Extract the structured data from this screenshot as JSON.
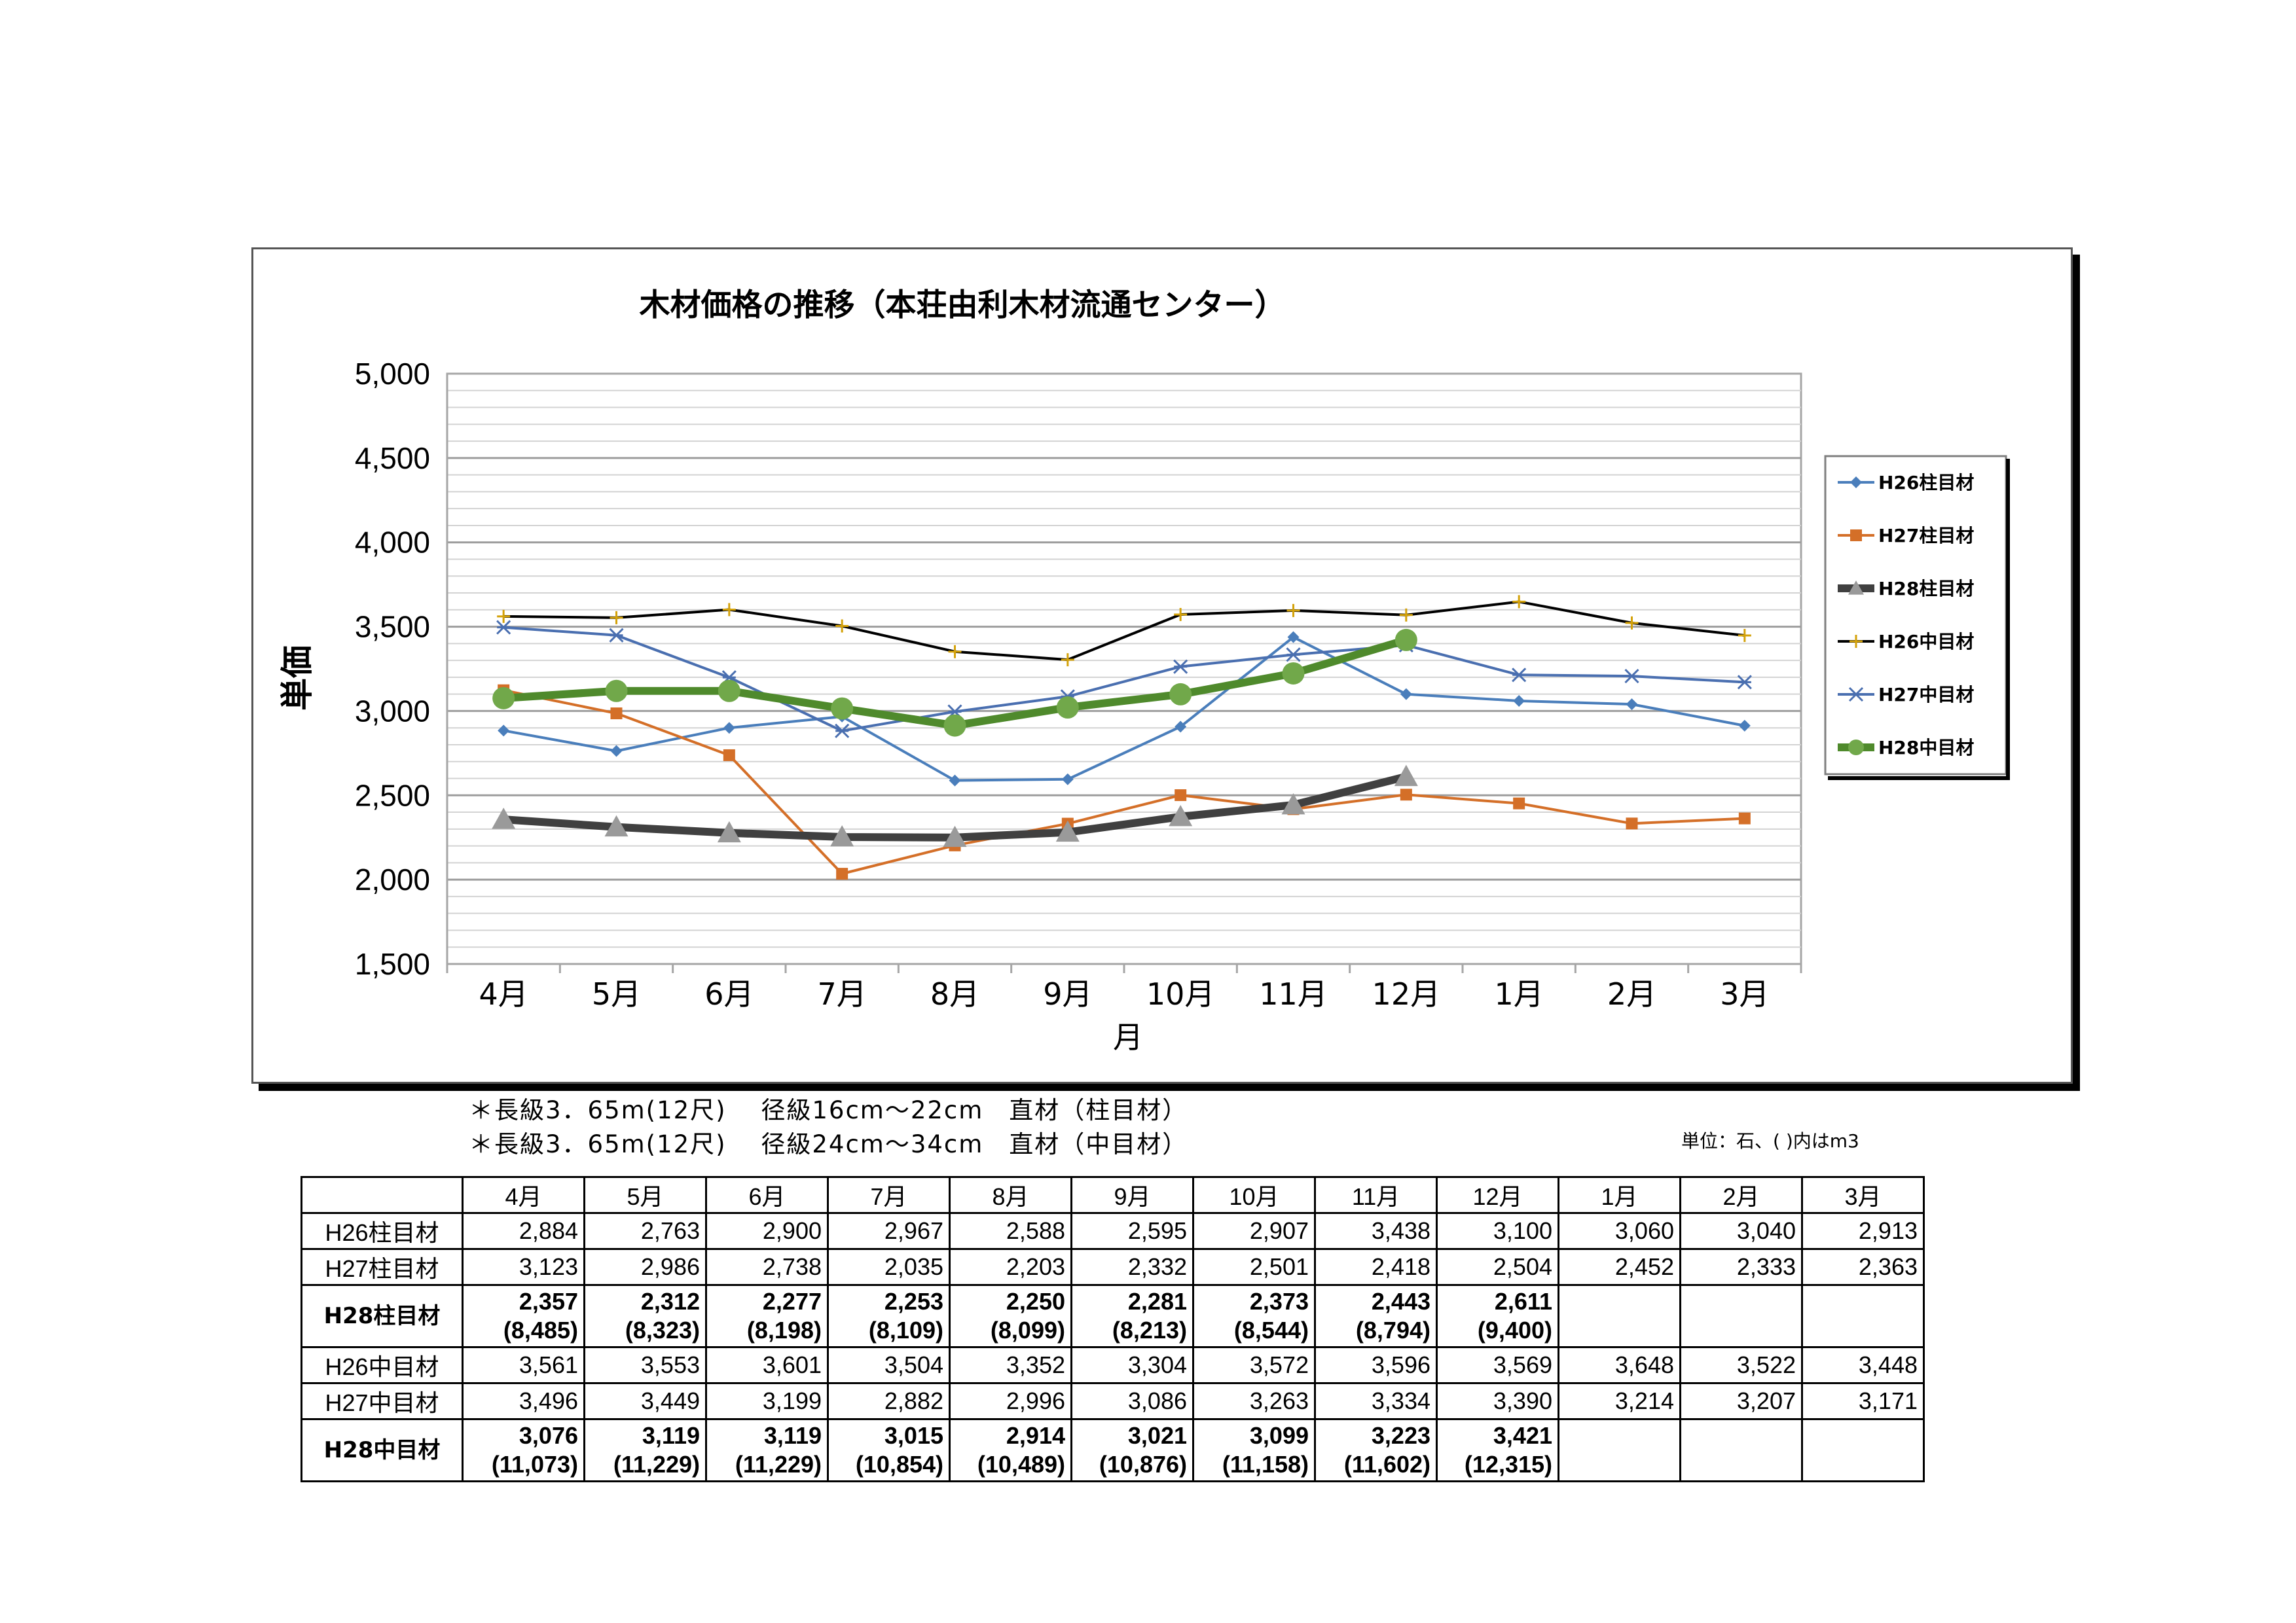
{
  "chart_data": {
    "type": "line",
    "title": "木材価格の推移（本荘由利木材流通センター）",
    "xlabel": "月",
    "ylabel": "単価",
    "ylim": [
      1500,
      5000
    ],
    "y_ticks": [
      "1,500",
      "2,000",
      "2,500",
      "3,000",
      "3,500",
      "4,000",
      "4,500",
      "5,000"
    ],
    "categories": [
      "4月",
      "5月",
      "6月",
      "7月",
      "8月",
      "9月",
      "10月",
      "11月",
      "12月",
      "1月",
      "2月",
      "3月"
    ],
    "grid": true,
    "legend_position": "right",
    "series": [
      {
        "name": "H26柱目材",
        "color": "#4a7ebb",
        "marker": "diamond",
        "values": [
          2884,
          2763,
          2900,
          2967,
          2588,
          2595,
          2907,
          3438,
          3100,
          3060,
          3040,
          2913
        ]
      },
      {
        "name": "H27柱目材",
        "color": "#d46f28",
        "marker": "square",
        "values": [
          3123,
          2986,
          2738,
          2035,
          2203,
          2332,
          2501,
          2418,
          2504,
          2452,
          2333,
          2363
        ]
      },
      {
        "name": "H28柱目材",
        "color": "#404040",
        "marker_color": "#9a9a9a",
        "marker": "triangle",
        "values": [
          2357,
          2312,
          2277,
          2253,
          2250,
          2281,
          2373,
          2443,
          2611,
          null,
          null,
          null
        ]
      },
      {
        "name": "H26中目材",
        "color": "#000000",
        "marker_color": "#d4a20a",
        "marker": "cross",
        "values": [
          3561,
          3553,
          3601,
          3504,
          3352,
          3304,
          3572,
          3596,
          3569,
          3648,
          3522,
          3448
        ]
      },
      {
        "name": "H27中目材",
        "color": "#4a6fb0",
        "marker": "star",
        "values": [
          3496,
          3449,
          3199,
          2882,
          2996,
          3086,
          3263,
          3334,
          3390,
          3214,
          3207,
          3171
        ]
      },
      {
        "name": "H28中目材",
        "color": "#4f8a2c",
        "marker_color": "#71a84a",
        "marker": "circle",
        "values": [
          3076,
          3119,
          3119,
          3015,
          2914,
          3021,
          3099,
          3223,
          3421,
          null,
          null,
          null
        ]
      }
    ]
  },
  "notes": [
    "＊長級3．65m(12尺)　 径級16cm～22cm　直材（柱目材）",
    "＊長級3．65m(12尺)　 径級24cm～34cm　直材（中目材）"
  ],
  "unit_note": "単位：石、( )内はm3",
  "table": {
    "months": [
      "4月",
      "5月",
      "6月",
      "7月",
      "8月",
      "9月",
      "10月",
      "11月",
      "12月",
      "1月",
      "2月",
      "3月"
    ],
    "rows": [
      {
        "label": "H26柱目材",
        "values": [
          "2,884",
          "2,763",
          "2,900",
          "2,967",
          "2,588",
          "2,595",
          "2,907",
          "3,438",
          "3,100",
          "3,060",
          "3,040",
          "2,913"
        ]
      },
      {
        "label": "H27柱目材",
        "values": [
          "3,123",
          "2,986",
          "2,738",
          "2,035",
          "2,203",
          "2,332",
          "2,501",
          "2,418",
          "2,504",
          "2,452",
          "2,333",
          "2,363"
        ]
      },
      {
        "label": "H28柱目材",
        "values": [
          "2,357",
          "2,312",
          "2,277",
          "2,253",
          "2,250",
          "2,281",
          "2,373",
          "2,443",
          "2,611",
          "",
          "",
          ""
        ],
        "sub": [
          "(8,485)",
          "(8,323)",
          "(8,198)",
          "(8,109)",
          "(8,099)",
          "(8,213)",
          "(8,544)",
          "(8,794)",
          "(9,400)",
          "",
          "",
          ""
        ]
      },
      {
        "label": "H26中目材",
        "values": [
          "3,561",
          "3,553",
          "3,601",
          "3,504",
          "3,352",
          "3,304",
          "3,572",
          "3,596",
          "3,569",
          "3,648",
          "3,522",
          "3,448"
        ]
      },
      {
        "label": "H27中目材",
        "values": [
          "3,496",
          "3,449",
          "3,199",
          "2,882",
          "2,996",
          "3,086",
          "3,263",
          "3,334",
          "3,390",
          "3,214",
          "3,207",
          "3,171"
        ]
      },
      {
        "label": "H28中目材",
        "values": [
          "3,076",
          "3,119",
          "3,119",
          "3,015",
          "2,914",
          "3,021",
          "3,099",
          "3,223",
          "3,421",
          "",
          "",
          ""
        ],
        "sub": [
          "(11,073)",
          "(11,229)",
          "(11,229)",
          "(10,854)",
          "(10,489)",
          "(10,876)",
          "(11,158)",
          "(11,602)",
          "(12,315)",
          "",
          "",
          ""
        ]
      }
    ]
  }
}
